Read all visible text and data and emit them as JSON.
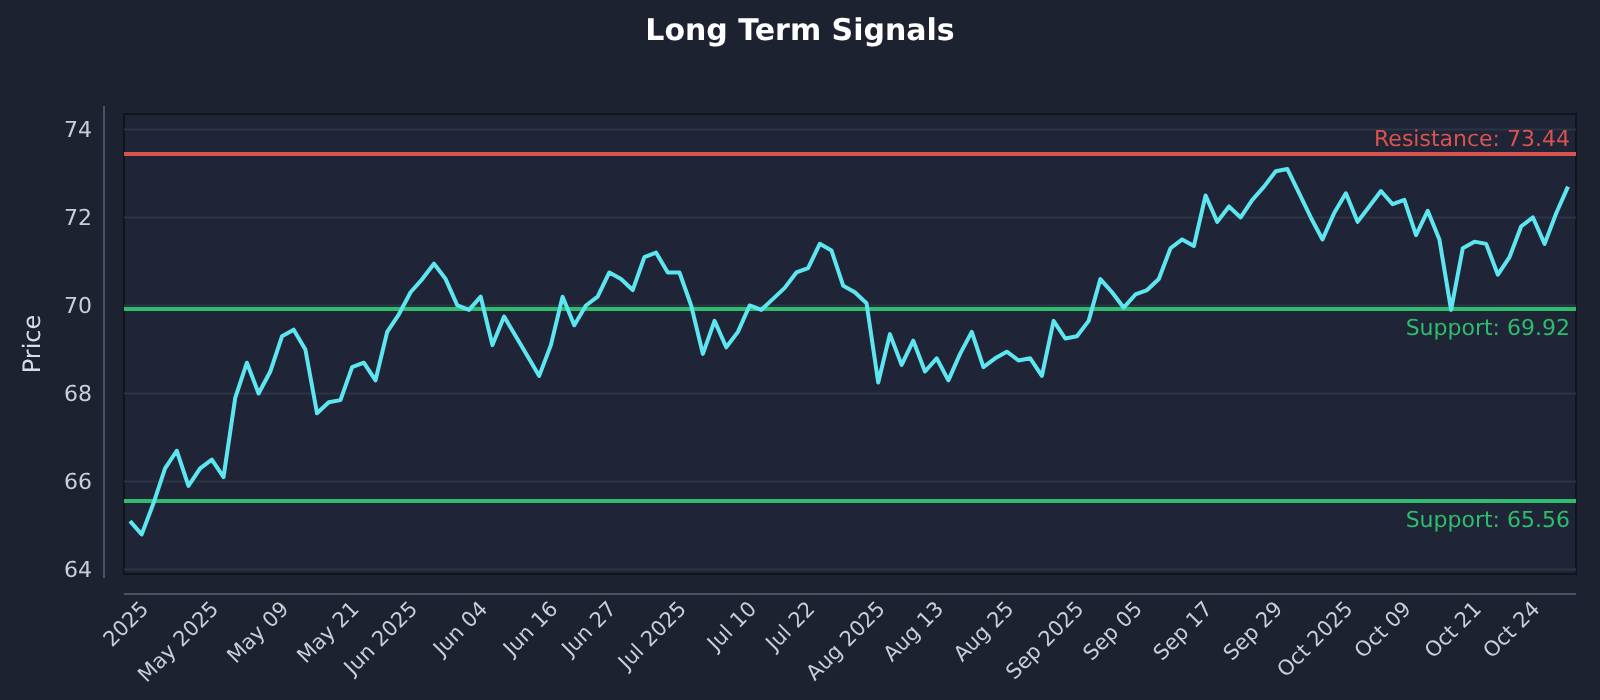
{
  "chart_data": {
    "type": "line",
    "title": "Long Term Signals",
    "ylabel": "Price",
    "categories": [
      null,
      "2025",
      null,
      null,
      null,
      null,
      null,
      "May 2025",
      null,
      null,
      null,
      null,
      null,
      "May 09",
      null,
      null,
      null,
      null,
      null,
      "May 21",
      null,
      null,
      null,
      null,
      "Jun 2025",
      null,
      null,
      null,
      null,
      null,
      "Jun 04",
      null,
      null,
      null,
      null,
      null,
      "Jun 16",
      null,
      null,
      null,
      null,
      "Jun 27",
      null,
      null,
      null,
      null,
      null,
      "Jul 2025",
      null,
      null,
      null,
      null,
      null,
      "Jul 10",
      null,
      null,
      null,
      null,
      "Jul 22",
      null,
      null,
      null,
      null,
      null,
      "Aug 2025",
      null,
      null,
      null,
      null,
      "Aug 13",
      null,
      null,
      null,
      null,
      null,
      "Aug 25",
      null,
      null,
      null,
      null,
      null,
      "Sep 2025",
      null,
      null,
      null,
      null,
      "Sep 05",
      null,
      null,
      null,
      null,
      null,
      "Sep 17",
      null,
      null,
      null,
      null,
      null,
      "Sep 29",
      null,
      null,
      null,
      null,
      null,
      "Oct 2025",
      null,
      null,
      null,
      null,
      "Oct 09",
      null,
      null,
      null,
      null,
      null,
      "Oct 21",
      null,
      null,
      null,
      null,
      "Oct 24",
      null,
      null,
      null
    ],
    "series": [
      {
        "color": "#5ee6f0",
        "values": [
          65.1,
          64.8,
          65.5,
          66.3,
          66.7,
          65.9,
          66.3,
          66.5,
          66.1,
          67.9,
          68.7,
          68.0,
          68.5,
          69.3,
          69.45,
          69.0,
          67.55,
          67.8,
          67.85,
          68.6,
          68.7,
          68.3,
          69.4,
          69.8,
          70.3,
          70.6,
          70.95,
          70.6,
          70.0,
          69.9,
          70.2,
          69.1,
          69.75,
          69.3,
          68.85,
          68.4,
          69.1,
          70.2,
          69.55,
          70.0,
          70.2,
          70.75,
          70.6,
          70.35,
          71.1,
          71.2,
          70.75,
          70.75,
          70.0,
          68.9,
          69.65,
          69.05,
          69.4,
          70.0,
          69.9,
          70.15,
          70.4,
          70.75,
          70.85,
          71.4,
          71.25,
          70.45,
          70.3,
          70.05,
          68.25,
          69.35,
          68.65,
          69.2,
          68.5,
          68.8,
          68.3,
          68.9,
          69.4,
          68.6,
          68.8,
          68.95,
          68.75,
          68.8,
          68.4,
          69.65,
          69.25,
          69.3,
          69.65,
          70.6,
          70.3,
          69.95,
          70.25,
          70.35,
          70.6,
          71.3,
          71.5,
          71.35,
          72.5,
          71.9,
          72.25,
          72.0,
          72.4,
          72.7,
          73.05,
          73.1,
          72.55,
          72.0,
          71.5,
          72.1,
          72.55,
          71.9,
          72.25,
          72.6,
          72.3,
          72.4,
          71.6,
          72.15,
          71.5,
          69.9,
          71.3,
          71.45,
          71.4,
          70.7,
          71.1,
          71.8,
          72.0,
          71.4,
          72.1,
          72.7
        ]
      }
    ],
    "ylim": [
      63.9,
      74.35
    ],
    "yticks": [
      64,
      66,
      68,
      70,
      72,
      74
    ],
    "grid": "y",
    "line_style": "solid",
    "marker": "none",
    "ref_lines": [
      {
        "axis": "y",
        "value": 73.44,
        "label": "Resistance: 73.44",
        "color": "#d9534f"
      },
      {
        "axis": "y",
        "value": 69.92,
        "label": "Support: 69.92",
        "color": "#2ebd6b"
      },
      {
        "axis": "y",
        "value": 65.56,
        "label": "Support: 65.56",
        "color": "#2ebd6b"
      }
    ]
  }
}
